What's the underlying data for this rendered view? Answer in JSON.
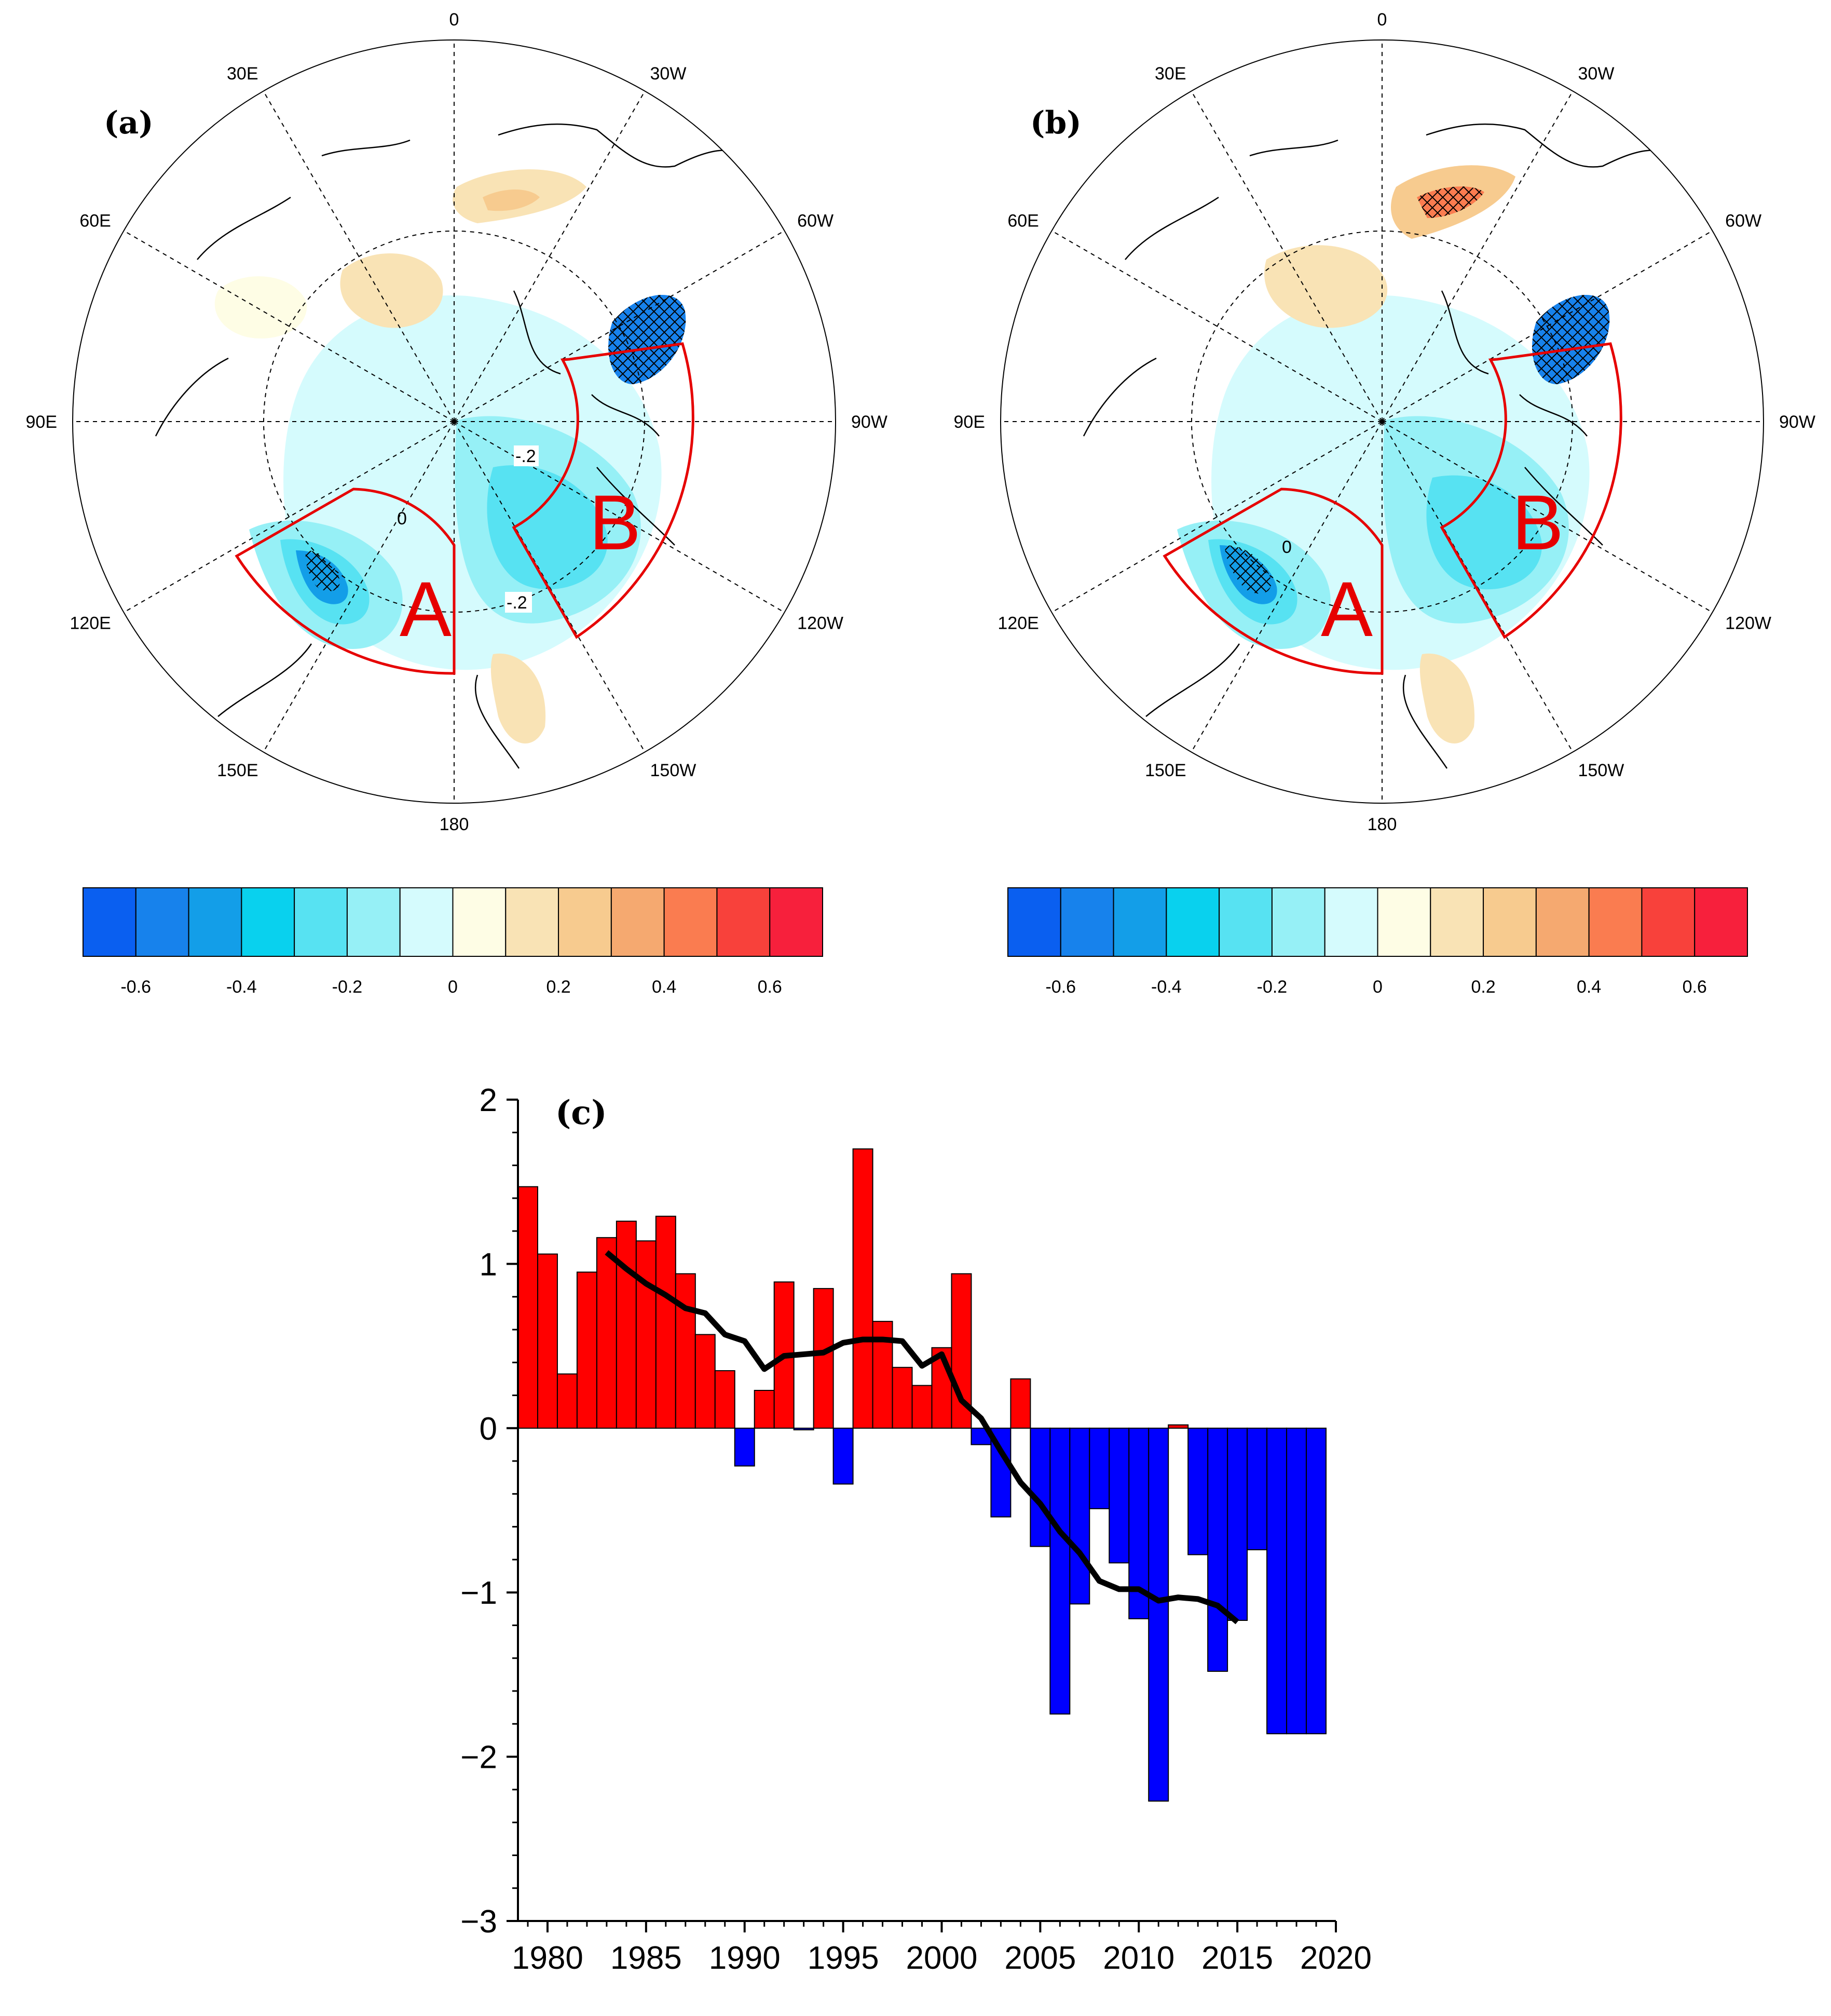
{
  "maps": [
    {
      "panel_label": "(a)",
      "type": "polar_stereographic_map",
      "boundary_latitude": 45,
      "longitude_labels": [
        "0",
        "30W",
        "60W",
        "90W",
        "120W",
        "150W",
        "180",
        "150E",
        "120E",
        "90E",
        "60E",
        "30E"
      ],
      "contour_labels": [
        "-.2",
        "0",
        "-.2"
      ],
      "regions": [
        "A",
        "B"
      ],
      "colorbar": {
        "colors": [
          "#0a5ff0",
          "#1782ec",
          "#139ee8",
          "#09d1ee",
          "#57e2f2",
          "#96f0f6",
          "#d5fbfd",
          "#fefde5",
          "#f9e3b5",
          "#f7cb8f",
          "#f5a970",
          "#fa7c50",
          "#f8413b",
          "#f7203c"
        ],
        "tick_labels": [
          "-0.6",
          "-0.4",
          "-0.2",
          "0",
          "0.2",
          "0.4",
          "0.6"
        ],
        "tick_values": [
          -0.6,
          -0.4,
          -0.2,
          0,
          0.2,
          0.4,
          0.6
        ]
      }
    },
    {
      "panel_label": "(b)",
      "type": "polar_stereographic_map",
      "boundary_latitude": 45,
      "longitude_labels": [
        "0",
        "30W",
        "60W",
        "90W",
        "120W",
        "150W",
        "180",
        "150E",
        "120E",
        "90E",
        "60E",
        "30E"
      ],
      "contour_labels": [
        "0"
      ],
      "regions": [
        "A",
        "B"
      ],
      "colorbar": {
        "colors": [
          "#0a5ff0",
          "#1782ec",
          "#139ee8",
          "#09d1ee",
          "#57e2f2",
          "#96f0f6",
          "#d5fbfd",
          "#fefde5",
          "#f9e3b5",
          "#f7cb8f",
          "#f5a970",
          "#fa7c50",
          "#f8413b",
          "#f7203c"
        ],
        "tick_labels": [
          "-0.6",
          "-0.4",
          "-0.2",
          "0",
          "0.2",
          "0.4",
          "0.6"
        ],
        "tick_values": [
          -0.6,
          -0.4,
          -0.2,
          0,
          0.2,
          0.4,
          0.6
        ]
      }
    }
  ],
  "chart_data": {
    "type": "bar",
    "panel_label": "(c)",
    "x": [
      1979,
      1980,
      1981,
      1982,
      1983,
      1984,
      1985,
      1986,
      1987,
      1988,
      1989,
      1990,
      1991,
      1992,
      1993,
      1994,
      1995,
      1996,
      1997,
      1998,
      1999,
      2000,
      2001,
      2002,
      2003,
      2004,
      2005,
      2006,
      2007,
      2008,
      2009,
      2010,
      2011,
      2012,
      2013,
      2014,
      2015,
      2016,
      2017,
      2018,
      2019
    ],
    "values": [
      1.47,
      1.06,
      0.33,
      0.95,
      1.16,
      1.26,
      1.14,
      1.29,
      0.94,
      0.57,
      0.35,
      -0.23,
      0.23,
      0.89,
      -0.01,
      0.85,
      -0.34,
      1.7,
      0.65,
      0.37,
      0.26,
      0.49,
      0.94,
      -0.1,
      -0.54,
      0.3,
      -0.72,
      -1.74,
      -1.07,
      -0.49,
      -0.82,
      -1.16,
      -2.27,
      0.02,
      -0.77,
      -1.48,
      -1.17,
      -0.74,
      -1.86,
      -1.86,
      -1.86
    ],
    "positive_color": "#ff0000",
    "negative_color": "#0000ff",
    "running_mean": {
      "x": [
        1983,
        1984,
        1985,
        1986,
        1987,
        1988,
        1989,
        1990,
        1991,
        1992,
        1993,
        1994,
        1995,
        1996,
        1997,
        1998,
        1999,
        2000,
        2001,
        2002,
        2003,
        2004,
        2005,
        2006,
        2007,
        2008,
        2009,
        2010,
        2011,
        2012,
        2013,
        2014,
        2015
      ],
      "y": [
        1.07,
        0.97,
        0.88,
        0.81,
        0.73,
        0.7,
        0.57,
        0.53,
        0.36,
        0.44,
        0.45,
        0.46,
        0.52,
        0.54,
        0.54,
        0.53,
        0.38,
        0.45,
        0.17,
        0.06,
        -0.14,
        -0.33,
        -0.46,
        -0.63,
        -0.76,
        -0.93,
        -0.98,
        -0.98,
        -1.05,
        -1.03,
        -1.04,
        -1.08,
        -1.18
      ]
    },
    "xticks": [
      "1980",
      "1985",
      "1990",
      "1995",
      "2000",
      "2005",
      "2010",
      "2015",
      "2020"
    ],
    "xtick_values": [
      1980,
      1985,
      1990,
      1995,
      2000,
      2005,
      2010,
      2015,
      2020
    ],
    "yticks": [
      "2",
      "1",
      "0",
      "−1",
      "−2",
      "−3"
    ],
    "ytick_values": [
      2,
      1,
      0,
      -1,
      -2,
      -3
    ],
    "xlim": [
      1978.5,
      2020
    ],
    "ylim": [
      -3,
      2
    ],
    "xlabel": "",
    "ylabel": "",
    "title": ""
  }
}
